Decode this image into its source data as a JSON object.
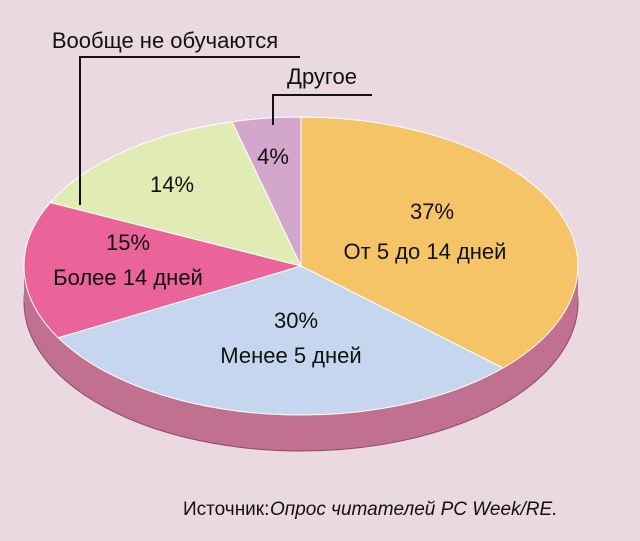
{
  "chart_data": {
    "type": "pie",
    "categories": [
      "От 5 до 14 дней",
      "Менее 5 дней",
      "Более 14 дней",
      "Вообще не обучаются",
      "Другое"
    ],
    "values": [
      37,
      30,
      15,
      14,
      4
    ],
    "value_labels": [
      "37%",
      "30%",
      "15%",
      "14%",
      "4%"
    ],
    "colors": [
      "#f5c466",
      "#c6d6ee",
      "#ea6399",
      "#e1ecb4",
      "#d3a6cc"
    ],
    "source_label": "Источник:",
    "source": "Опрос читателей PC Week/RE."
  }
}
